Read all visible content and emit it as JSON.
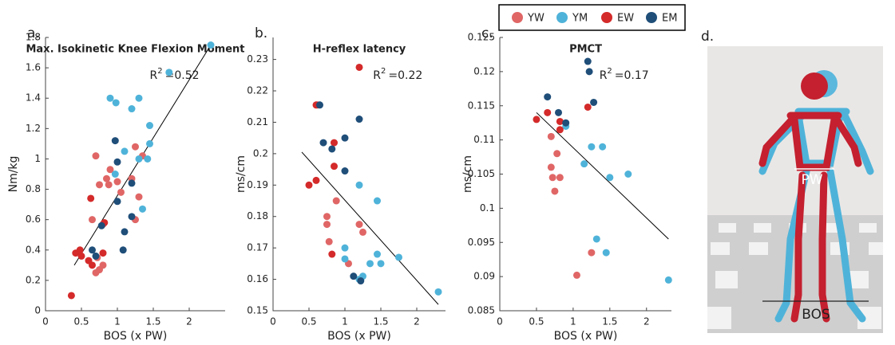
{
  "chart_data": [
    {
      "type": "scatter",
      "panel_label": "a.",
      "title": "Max. Isokinetic Knee Flexion Moment",
      "x_label": "BOS (x PW)",
      "y_label": "Nm/kg",
      "xlim": [
        0,
        2.5
      ],
      "ylim": [
        0,
        1.8
      ],
      "xticks": [
        0,
        0.5,
        1,
        1.5,
        2
      ],
      "yticks": [
        0,
        0.2,
        0.4,
        0.6,
        0.8,
        1,
        1.2,
        1.4,
        1.6,
        1.8
      ],
      "r2": {
        "text": "R",
        "sup": "2",
        "value": "=0.52"
      },
      "fit": {
        "x": [
          0.4,
          2.3
        ],
        "y": [
          0.3,
          1.75
        ]
      },
      "series": [
        {
          "name": "YW",
          "color": "#e06666",
          "x": [
            0.7,
            0.75,
            0.85,
            0.9,
            0.88,
            0.65,
            0.8,
            0.72,
            0.75,
            0.8,
            1.0,
            1.05,
            1.2,
            1.25,
            1.3,
            1.35,
            1.25,
            0.7
          ],
          "values": [
            1.02,
            0.83,
            0.87,
            0.93,
            0.83,
            0.6,
            0.57,
            0.35,
            0.27,
            0.3,
            0.85,
            0.78,
            0.87,
            1.08,
            0.75,
            1.02,
            0.6,
            0.25
          ]
        },
        {
          "name": "YM",
          "color": "#4fb3d9",
          "x": [
            0.9,
            0.98,
            1.2,
            1.3,
            1.1,
            1.45,
            1.45,
            1.42,
            1.3,
            1.35,
            1.72,
            2.3,
            0.97
          ],
          "values": [
            1.4,
            1.37,
            1.33,
            1.4,
            1.05,
            1.22,
            1.1,
            1.0,
            1.0,
            0.67,
            1.57,
            1.75,
            0.9
          ]
        },
        {
          "name": "EW",
          "color": "#d42a2a",
          "x": [
            0.36,
            0.42,
            0.48,
            0.5,
            0.6,
            0.63,
            0.8,
            0.82,
            0.65
          ],
          "values": [
            0.1,
            0.38,
            0.4,
            0.36,
            0.33,
            0.74,
            0.38,
            0.58,
            0.3
          ]
        },
        {
          "name": "EM",
          "color": "#1f4e79",
          "x": [
            0.97,
            0.65,
            0.7,
            0.78,
            1.0,
            1.08,
            1.1,
            1.2,
            1.2,
            1.0
          ],
          "values": [
            1.12,
            0.4,
            0.36,
            0.56,
            0.72,
            0.4,
            0.52,
            0.84,
            0.62,
            0.98
          ]
        }
      ]
    },
    {
      "type": "scatter",
      "panel_label": "b.",
      "title": "H-reflex latency",
      "x_label": "BOS (x PW)",
      "y_label": "ms/cm",
      "xlim": [
        0,
        2.4
      ],
      "ylim": [
        0.15,
        0.237
      ],
      "xticks": [
        0,
        0.5,
        1,
        1.5,
        2
      ],
      "yticks": [
        0.15,
        0.16,
        0.17,
        0.18,
        0.19,
        0.2,
        0.21,
        0.22,
        0.23
      ],
      "r2": {
        "text": "R",
        "sup": "2",
        "value": "=0.22"
      },
      "fit": {
        "x": [
          0.4,
          2.3
        ],
        "y": [
          0.2005,
          0.152
        ]
      },
      "series": [
        {
          "name": "YW",
          "color": "#e06666",
          "x": [
            0.62,
            0.75,
            0.75,
            0.78,
            0.88,
            1.05,
            1.2,
            1.25
          ],
          "values": [
            0.2155,
            0.18,
            0.1775,
            0.172,
            0.185,
            0.165,
            0.1775,
            0.175
          ]
        },
        {
          "name": "YM",
          "color": "#4fb3d9",
          "x": [
            1.2,
            1.25,
            1.35,
            1.45,
            1.5,
            1.45,
            1.75,
            2.3,
            1.0,
            1.0,
            1.2
          ],
          "values": [
            0.19,
            0.161,
            0.165,
            0.168,
            0.165,
            0.185,
            0.167,
            0.156,
            0.17,
            0.1665,
            0.16
          ]
        },
        {
          "name": "EW",
          "color": "#d42a2a",
          "x": [
            1.2,
            0.6,
            0.85,
            0.85,
            0.6,
            0.5,
            0.82
          ],
          "values": [
            0.2275,
            0.2155,
            0.2035,
            0.196,
            0.1915,
            0.19,
            0.168
          ]
        },
        {
          "name": "EM",
          "color": "#1f4e79",
          "x": [
            0.65,
            0.7,
            0.82,
            1.0,
            1.0,
            1.2,
            1.12,
            1.22
          ],
          "values": [
            0.2155,
            0.2035,
            0.2015,
            0.205,
            0.1945,
            0.211,
            0.161,
            0.1595
          ]
        }
      ]
    },
    {
      "type": "scatter",
      "panel_label": "c.",
      "title": "PMCT",
      "x_label": "BOS (x PW)",
      "y_label": "ms/cm",
      "xlim": [
        0,
        2.34
      ],
      "ylim": [
        0.085,
        0.125
      ],
      "xticks": [
        0,
        0.5,
        1,
        1.5,
        2
      ],
      "yticks": [
        0.085,
        0.09,
        0.095,
        0.1,
        0.105,
        0.11,
        0.115,
        0.12,
        0.125
      ],
      "r2": {
        "text": "R",
        "sup": "2",
        "value": "=0.17"
      },
      "fit": {
        "x": [
          0.5,
          2.3
        ],
        "y": [
          0.114,
          0.0955
        ]
      },
      "series": [
        {
          "name": "YW",
          "color": "#e06666",
          "x": [
            0.7,
            0.78,
            0.82,
            0.72,
            0.7,
            0.75,
            1.25,
            1.05
          ],
          "values": [
            0.1105,
            0.108,
            0.1045,
            0.1045,
            0.106,
            0.1025,
            0.0935,
            0.0902
          ]
        },
        {
          "name": "YM",
          "color": "#4fb3d9",
          "x": [
            0.9,
            1.15,
            1.25,
            1.4,
            1.5,
            1.75,
            1.32,
            1.45,
            2.3
          ],
          "values": [
            0.112,
            0.1065,
            0.109,
            0.109,
            0.1045,
            0.105,
            0.0955,
            0.0935,
            0.0895
          ]
        },
        {
          "name": "EW",
          "color": "#d42a2a",
          "x": [
            0.5,
            0.65,
            0.82,
            0.82,
            1.2
          ],
          "values": [
            0.113,
            0.114,
            0.1127,
            0.1115,
            0.1148
          ]
        },
        {
          "name": "EM",
          "color": "#1f4e79",
          "x": [
            0.65,
            0.8,
            0.9,
            1.2,
            1.22,
            1.28
          ],
          "values": [
            0.1163,
            0.114,
            0.1125,
            0.1215,
            0.12,
            0.1155
          ]
        }
      ]
    }
  ],
  "panel_d": {
    "label": "d.",
    "pw_label": "PW",
    "bos_label": "BOS"
  }
}
